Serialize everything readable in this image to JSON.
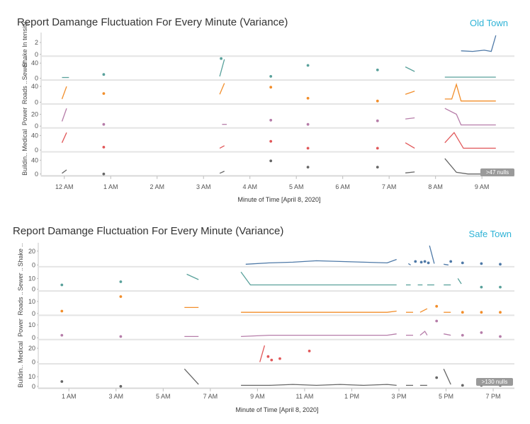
{
  "chart_data": [
    {
      "type": "line",
      "title": "Report Damange Fluctuation For Every Minute (Variance)",
      "location": "Old Town",
      "xlabel": "Minute of Time [April 8, 2020]",
      "x_ticks": [
        "12 AM",
        "1 AM",
        "2 AM",
        "3 AM",
        "4 AM",
        "5 AM",
        "6 AM",
        "7 AM",
        "8 AM",
        "9 AM"
      ],
      "x_range_hours": [
        -0.5,
        9.7
      ],
      "null_badge": ">47 nulls",
      "series": [
        {
          "name": "Shake Intensity",
          "label": "Shake In tensity",
          "color": "#4e79a7",
          "ticks": [
            0,
            2
          ],
          "ylim": [
            0,
            3.2
          ],
          "segments": [
            [
              [
                8.55,
                0.6
              ],
              [
                8.8,
                0.5
              ],
              [
                9.05,
                0.7
              ],
              [
                9.2,
                0.5
              ],
              [
                9.3,
                3.2
              ]
            ]
          ],
          "points": []
        },
        {
          "name": "Sewer",
          "label": "Sewer ..",
          "color": "#59a19b",
          "ticks": [
            0,
            40
          ],
          "ylim": [
            0,
            50
          ],
          "segments": [
            [
              [
                -0.05,
                2
              ],
              [
                0.1,
                2
              ]
            ],
            [
              [
                3.35,
                5
              ],
              [
                3.45,
                50
              ]
            ],
            [
              [
                7.35,
                30
              ],
              [
                7.55,
                18
              ]
            ],
            [
              [
                8.2,
                3
              ],
              [
                9.3,
                3
              ]
            ]
          ],
          "points": [
            [
              0.85,
              10
            ],
            [
              3.38,
              52
            ],
            [
              4.45,
              5
            ],
            [
              5.25,
              34
            ],
            [
              6.75,
              22
            ]
          ]
        },
        {
          "name": "Roads",
          "label": "Roads ..",
          "color": "#f28e2b",
          "ticks": [
            0,
            40
          ],
          "ylim": [
            0,
            48
          ],
          "segments": [
            [
              [
                -0.05,
                8
              ],
              [
                0.05,
                40
              ]
            ],
            [
              [
                3.35,
                20
              ],
              [
                3.45,
                48
              ]
            ],
            [
              [
                7.35,
                20
              ],
              [
                7.55,
                28
              ]
            ],
            [
              [
                8.2,
                8
              ],
              [
                8.35,
                8
              ],
              [
                8.45,
                45
              ],
              [
                8.55,
                3
              ],
              [
                9.3,
                3
              ]
            ]
          ],
          "points": [
            [
              0.85,
              22
            ],
            [
              4.45,
              38
            ],
            [
              5.25,
              10
            ],
            [
              6.75,
              3
            ]
          ]
        },
        {
          "name": "Power",
          "label": "Power",
          "color": "#b67da9",
          "ticks": [
            0,
            20
          ],
          "ylim": [
            0,
            32
          ],
          "segments": [
            [
              [
                -0.05,
                8
              ],
              [
                0.05,
                30
              ]
            ],
            [
              [
                3.4,
                3
              ],
              [
                3.5,
                3
              ]
            ],
            [
              [
                7.35,
                12
              ],
              [
                7.55,
                14
              ]
            ],
            [
              [
                8.2,
                30
              ],
              [
                8.45,
                20
              ],
              [
                8.55,
                2
              ],
              [
                9.3,
                2
              ]
            ]
          ],
          "points": [
            [
              0.85,
              3
            ],
            [
              4.45,
              10
            ],
            [
              5.25,
              3
            ],
            [
              6.75,
              9
            ]
          ]
        },
        {
          "name": "Medical",
          "label": "Medical",
          "color": "#e15759",
          "ticks": [
            0,
            40
          ],
          "ylim": [
            0,
            52
          ],
          "segments": [
            [
              [
                -0.05,
                20
              ],
              [
                0.05,
                48
              ]
            ],
            [
              [
                3.35,
                5
              ],
              [
                3.45,
                12
              ]
            ],
            [
              [
                7.35,
                20
              ],
              [
                7.55,
                5
              ]
            ],
            [
              [
                8.2,
                20
              ],
              [
                8.4,
                48
              ],
              [
                8.6,
                5
              ],
              [
                9.3,
                5
              ]
            ]
          ],
          "points": [
            [
              0.85,
              8
            ],
            [
              4.45,
              24
            ],
            [
              5.25,
              5
            ],
            [
              6.75,
              5
            ]
          ]
        },
        {
          "name": "Building",
          "label": "Buildin..",
          "color": "#666666",
          "ticks": [
            0,
            40
          ],
          "ylim": [
            0,
            55
          ],
          "segments": [
            [
              [
                -0.05,
                2
              ],
              [
                0.05,
                12
              ]
            ],
            [
              [
                3.35,
                2
              ],
              [
                3.45,
                8
              ]
            ],
            [
              [
                7.35,
                3
              ],
              [
                7.55,
                6
              ]
            ],
            [
              [
                8.2,
                45
              ],
              [
                8.45,
                5
              ],
              [
                8.7,
                0
              ],
              [
                9.3,
                0
              ]
            ]
          ],
          "points": [
            [
              0.85,
              0
            ],
            [
              4.45,
              38
            ],
            [
              5.25,
              20
            ],
            [
              6.75,
              20
            ]
          ]
        }
      ]
    },
    {
      "type": "line",
      "title": "Report Damange Fluctuation For Every Minute (Variance)",
      "location": "Safe Town",
      "xlabel": "Minute of Time [April 8, 2020]",
      "x_ticks": [
        "1 AM",
        "3 AM",
        "5 AM",
        "7 AM",
        "9 AM",
        "11 AM",
        "1 PM",
        "3 PM",
        "5 PM",
        "7 PM"
      ],
      "x_range_hours": [
        -0.3,
        19.9
      ],
      "null_badge": ">130 nulls",
      "series": [
        {
          "name": "Shake",
          "label": "Shake ..",
          "color": "#4e79a7",
          "ticks": [
            0,
            20
          ],
          "ylim": [
            0,
            28
          ],
          "segments": [
            [
              [
                8.5,
                1
              ],
              [
                9.5,
                3
              ],
              [
                10.5,
                4
              ],
              [
                11.5,
                6
              ],
              [
                12.5,
                5
              ],
              [
                13.5,
                4
              ],
              [
                14.5,
                3
              ],
              [
                14.9,
                8
              ]
            ],
            [
              [
                15.4,
                2
              ],
              [
                15.5,
                0
              ]
            ],
            [
              [
                16.3,
                28
              ],
              [
                16.5,
                2
              ]
            ],
            [
              [
                16.9,
                1
              ],
              [
                17.1,
                0
              ]
            ]
          ],
          "points": [
            [
              15.7,
              5
            ],
            [
              15.95,
              4
            ],
            [
              16.1,
              5
            ],
            [
              16.25,
              3
            ],
            [
              17.2,
              5
            ],
            [
              17.7,
              3
            ],
            [
              18.5,
              2
            ],
            [
              19.3,
              1
            ]
          ]
        },
        {
          "name": "Sewer",
          "label": "Sewer ..",
          "color": "#59a19b",
          "ticks": [
            0,
            10
          ],
          "ylim": [
            0,
            18
          ],
          "segments": [
            [
              [
                6.0,
                14
              ],
              [
                6.5,
                9
              ]
            ],
            [
              [
                8.3,
                16
              ],
              [
                8.7,
                4
              ],
              [
                9.5,
                4
              ],
              [
                10.5,
                4
              ],
              [
                11.5,
                4
              ],
              [
                12.5,
                4
              ],
              [
                13.5,
                4
              ],
              [
                14.5,
                4
              ],
              [
                14.9,
                4
              ]
            ],
            [
              [
                15.3,
                4
              ],
              [
                15.5,
                4
              ]
            ],
            [
              [
                15.8,
                4
              ],
              [
                16.0,
                4
              ]
            ],
            [
              [
                16.2,
                4
              ],
              [
                16.5,
                4
              ]
            ],
            [
              [
                16.9,
                4
              ],
              [
                17.2,
                4
              ]
            ],
            [
              [
                17.5,
                10
              ],
              [
                17.65,
                5
              ]
            ]
          ],
          "points": [
            [
              0.7,
              4
            ],
            [
              3.2,
              7
            ],
            [
              18.5,
              2
            ],
            [
              19.3,
              2
            ]
          ]
        },
        {
          "name": "Roads",
          "label": "Roads ..",
          "color": "#f28e2b",
          "ticks": [
            0,
            10
          ],
          "ylim": [
            0,
            16
          ],
          "segments": [
            [
              [
                5.9,
                5
              ],
              [
                6.5,
                5
              ]
            ],
            [
              [
                8.3,
                1
              ],
              [
                9.5,
                1
              ],
              [
                10.5,
                1
              ],
              [
                11.5,
                1
              ],
              [
                12.5,
                1
              ],
              [
                13.5,
                1
              ],
              [
                14.5,
                1
              ],
              [
                14.9,
                2
              ]
            ],
            [
              [
                15.3,
                1
              ],
              [
                15.6,
                1
              ]
            ],
            [
              [
                15.9,
                1
              ],
              [
                16.2,
                4
              ]
            ],
            [
              [
                16.9,
                1
              ],
              [
                17.2,
                1
              ]
            ]
          ],
          "points": [
            [
              0.7,
              2
            ],
            [
              3.2,
              14
            ],
            [
              16.6,
              6
            ],
            [
              17.7,
              1
            ],
            [
              18.5,
              1
            ],
            [
              19.3,
              1
            ]
          ]
        },
        {
          "name": "Power",
          "label": "Power",
          "color": "#b67da9",
          "ticks": [
            0,
            10
          ],
          "ylim": [
            0,
            15
          ],
          "segments": [
            [
              [
                5.9,
                1
              ],
              [
                6.5,
                1
              ]
            ],
            [
              [
                8.3,
                1
              ],
              [
                9.5,
                2
              ],
              [
                10.5,
                2
              ],
              [
                11.5,
                2
              ],
              [
                12.5,
                2
              ],
              [
                13.5,
                2
              ],
              [
                14.5,
                2
              ],
              [
                14.9,
                3
              ]
            ],
            [
              [
                15.3,
                2
              ],
              [
                15.6,
                2
              ]
            ],
            [
              [
                15.9,
                2
              ],
              [
                16.1,
                5
              ],
              [
                16.2,
                2
              ]
            ],
            [
              [
                16.9,
                3
              ],
              [
                17.2,
                2
              ]
            ]
          ],
          "points": [
            [
              0.7,
              2
            ],
            [
              3.2,
              1
            ],
            [
              16.6,
              13
            ],
            [
              17.7,
              2
            ],
            [
              18.5,
              4
            ],
            [
              19.3,
              1
            ]
          ]
        },
        {
          "name": "Medical",
          "label": "Medical",
          "color": "#e15759",
          "ticks": [
            0,
            20
          ],
          "ylim": [
            0,
            28
          ],
          "segments": [
            [
              [
                9.1,
                0
              ],
              [
                9.3,
                24
              ]
            ]
          ],
          "points": [
            [
              9.45,
              8
            ],
            [
              9.6,
              3
            ],
            [
              9.95,
              5
            ],
            [
              11.2,
              16
            ]
          ]
        },
        {
          "name": "Building",
          "label": "Buildin..",
          "color": "#666666",
          "ticks": [
            0,
            10
          ],
          "ylim": [
            0,
            20
          ],
          "segments": [
            [
              [
                5.9,
                18
              ],
              [
                6.5,
                2
              ]
            ],
            [
              [
                8.3,
                1
              ],
              [
                9.5,
                1
              ],
              [
                10.5,
                2
              ],
              [
                11.5,
                1
              ],
              [
                12.5,
                2
              ],
              [
                13.5,
                1
              ],
              [
                14.5,
                2
              ],
              [
                14.9,
                1
              ]
            ],
            [
              [
                15.3,
                1
              ],
              [
                15.6,
                1
              ]
            ],
            [
              [
                15.9,
                1
              ],
              [
                16.2,
                1
              ]
            ],
            [
              [
                16.9,
                18
              ],
              [
                17.2,
                2
              ]
            ]
          ],
          "points": [
            [
              0.7,
              5
            ],
            [
              3.2,
              0
            ],
            [
              16.6,
              9
            ],
            [
              17.7,
              1
            ],
            [
              18.5,
              1
            ],
            [
              19.3,
              1
            ]
          ]
        }
      ]
    }
  ]
}
